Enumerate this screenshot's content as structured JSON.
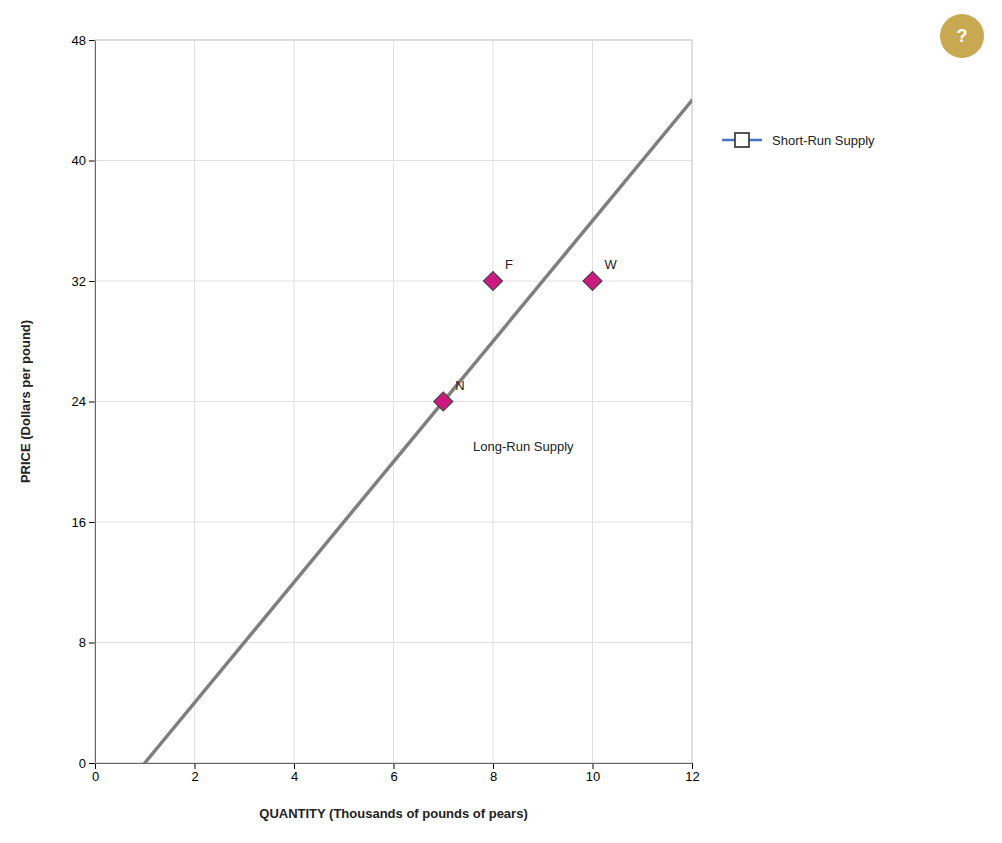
{
  "chart_data": {
    "type": "scatter",
    "xlabel": "QUANTITY (Thousands of pounds of pears)",
    "ylabel": "PRICE (Dollars per pound)",
    "xlim": [
      0,
      12
    ],
    "ylim": [
      0,
      48
    ],
    "xticks": [
      0,
      2,
      4,
      6,
      8,
      10,
      12
    ],
    "yticks": [
      0,
      8,
      16,
      24,
      32,
      40,
      48
    ],
    "grid": true,
    "legend": "right",
    "series": [
      {
        "type": "line",
        "color": "#7f7f7f",
        "x": [
          1,
          12
        ],
        "values": [
          0,
          44
        ]
      },
      {
        "type": "scatter",
        "marker": "diamond",
        "color": "#cc1a80",
        "x": [
          7,
          8,
          10
        ],
        "values": [
          24,
          32,
          32
        ],
        "labels": [
          "N",
          "F",
          "W"
        ]
      },
      {
        "name": "Short-Run Supply",
        "type": "line",
        "marker": "square",
        "color": "#4472c4",
        "x": [],
        "values": []
      }
    ],
    "annotations": [
      {
        "text": "Long-Run Supply",
        "x": 7.6,
        "y": 21.5
      },
      {
        "text": "?"
      }
    ]
  }
}
